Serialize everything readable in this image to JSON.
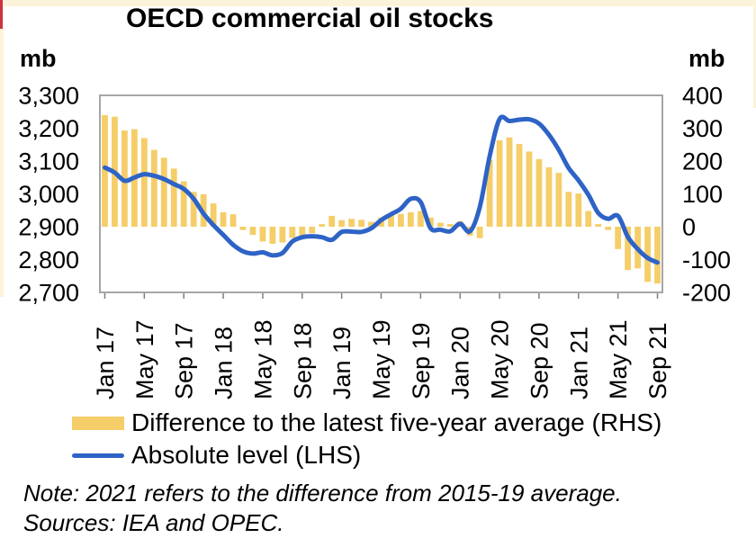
{
  "header": {
    "title": "OECD commercial oil stocks"
  },
  "axes": {
    "left_unit": "mb",
    "right_unit": "mb"
  },
  "legend": {
    "items": [
      {
        "label": "Difference to the latest five-year average (RHS)",
        "swatch": "bar",
        "color": "#F5CE69"
      },
      {
        "label": "Absolute level (LHS)",
        "swatch": "line",
        "color": "#2E63C6"
      }
    ]
  },
  "notes": {
    "note": "Note: 2021 refers to the difference from 2015-19 average.",
    "sources": "Sources: IEA and OPEC."
  },
  "chart_data": {
    "type": "combo",
    "title": "OECD commercial oil stocks",
    "grid": false,
    "legend_position": "bottom-left",
    "x": [
      "Jan 17",
      "Feb 17",
      "Mar 17",
      "Apr 17",
      "May 17",
      "Jun 17",
      "Jul 17",
      "Aug 17",
      "Sep 17",
      "Oct 17",
      "Nov 17",
      "Dec 17",
      "Jan 18",
      "Feb 18",
      "Mar 18",
      "Apr 18",
      "May 18",
      "Jun 18",
      "Jul 18",
      "Aug 18",
      "Sep 18",
      "Oct 18",
      "Nov 18",
      "Dec 18",
      "Jan 19",
      "Feb 19",
      "Mar 19",
      "Apr 19",
      "May 19",
      "Jun 19",
      "Jul 19",
      "Aug 19",
      "Sep 19",
      "Oct 19",
      "Nov 19",
      "Dec 19",
      "Jan 20",
      "Feb 20",
      "Mar 20",
      "Apr 20",
      "May 20",
      "Jun 20",
      "Jul 20",
      "Aug 20",
      "Sep 20",
      "Oct 20",
      "Nov 20",
      "Dec 20",
      "Jan 21",
      "Feb 21",
      "Mar 21",
      "Apr 21",
      "May 21",
      "Jun 21",
      "Jul 21",
      "Aug 21",
      "Sep 21"
    ],
    "x_tick_every": 4,
    "x_tick_labels": [
      "Jan 17",
      "May 17",
      "Sep 17",
      "Jan 18",
      "May 18",
      "Sep 18",
      "Jan 19",
      "May 19",
      "Sep 19",
      "Jan 20",
      "May 20",
      "Sep 20",
      "Jan 21",
      "May 21",
      "Sep 21"
    ],
    "left_axis": {
      "unit": "mb",
      "min": 2700,
      "max": 3300,
      "tick_step": 100,
      "tick_labels": [
        "3,300",
        "3,200",
        "3,100",
        "3,000",
        "2,900",
        "2,800",
        "2,700"
      ],
      "tick_values": [
        3300,
        3200,
        3100,
        3000,
        2900,
        2800,
        2700
      ]
    },
    "right_axis": {
      "unit": "mb",
      "min": -200,
      "max": 400,
      "tick_step": 100,
      "tick_labels": [
        "400",
        "300",
        "200",
        "100",
        "0",
        "-100",
        "-200"
      ],
      "tick_values": [
        400,
        300,
        200,
        100,
        0,
        -100,
        -200
      ]
    },
    "series": [
      {
        "name": "Difference to the latest five-year average (RHS)",
        "type": "bar",
        "axis": "right",
        "color": "#F5CE69",
        "values": [
          340,
          335,
          293,
          297,
          270,
          234,
          210,
          177,
          138,
          106,
          99,
          71,
          44,
          38,
          -10,
          -25,
          -45,
          -52,
          -48,
          -34,
          -28,
          -20,
          8,
          33,
          20,
          24,
          21,
          15,
          28,
          37,
          39,
          44,
          48,
          28,
          12,
          8,
          17,
          -27,
          -35,
          204,
          263,
          272,
          252,
          229,
          206,
          181,
          164,
          106,
          101,
          48,
          8,
          -10,
          -68,
          -132,
          -127,
          -168,
          -173
        ]
      },
      {
        "name": "Absolute level (LHS)",
        "type": "line",
        "axis": "left",
        "color": "#2E63C6",
        "values": [
          3080,
          3065,
          3040,
          3050,
          3060,
          3055,
          3045,
          3030,
          3015,
          2985,
          2940,
          2905,
          2875,
          2845,
          2825,
          2818,
          2822,
          2813,
          2820,
          2855,
          2868,
          2871,
          2868,
          2860,
          2884,
          2885,
          2884,
          2895,
          2920,
          2938,
          2955,
          2985,
          2975,
          2896,
          2891,
          2886,
          2909,
          2886,
          2960,
          3115,
          3228,
          3222,
          3226,
          3227,
          3214,
          3180,
          3134,
          3079,
          3041,
          2997,
          2942,
          2924,
          2933,
          2869,
          2832,
          2805,
          2791
        ]
      }
    ],
    "plot_border_color": "#A6A6A6"
  }
}
